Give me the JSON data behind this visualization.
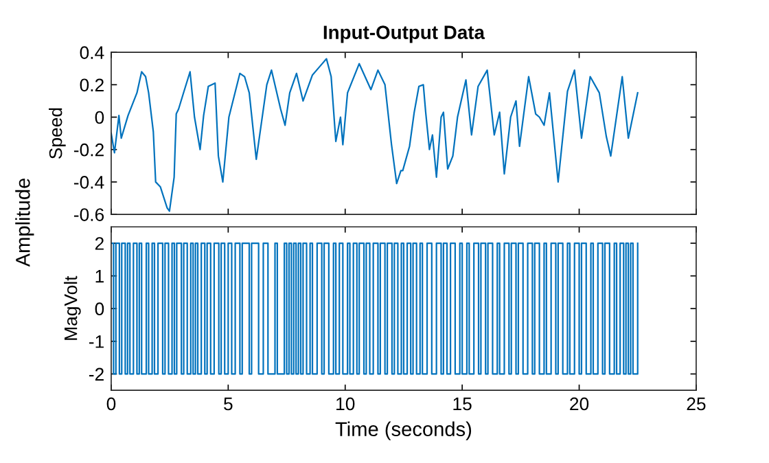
{
  "chart_data": [
    {
      "type": "line",
      "title": "Input-Output Data",
      "ylabel": "Speed",
      "annotations": [
        "Amplitude"
      ],
      "color": "#0072bd",
      "x": [
        0,
        0.14,
        0.33,
        0.43,
        0.72,
        1.1,
        1.3,
        1.47,
        1.6,
        1.8,
        1.9,
        2.1,
        2.39,
        2.49,
        2.69,
        2.78,
        2.88,
        3.07,
        3.37,
        3.56,
        3.8,
        3.95,
        4.15,
        4.44,
        4.58,
        4.77,
        5.03,
        5.5,
        5.7,
        5.9,
        6.2,
        6.65,
        6.85,
        7.24,
        7.43,
        7.63,
        7.92,
        8.2,
        8.6,
        8.9,
        9.2,
        9.4,
        9.6,
        9.8,
        9.9,
        10.1,
        10.6,
        11.1,
        11.4,
        11.7,
        11.98,
        12.2,
        12.38,
        12.46,
        12.75,
        12.95,
        13.15,
        13.34,
        13.44,
        13.6,
        13.73,
        13.9,
        14.1,
        14.2,
        14.38,
        14.6,
        14.8,
        15.16,
        15.4,
        15.68,
        16.07,
        16.37,
        16.6,
        16.8,
        17.07,
        17.3,
        17.45,
        17.84,
        18.14,
        18.3,
        18.5,
        18.73,
        19.1,
        19.5,
        19.8,
        20.1,
        20.47,
        20.86,
        21.16,
        21.35,
        21.84,
        22.1,
        22.5
      ],
      "values": [
        -0.1,
        -0.22,
        0.01,
        -0.13,
        0.01,
        0.15,
        0.28,
        0.25,
        0.15,
        -0.09,
        -0.4,
        -0.43,
        -0.56,
        -0.58,
        -0.37,
        0.02,
        0.05,
        0.14,
        0.28,
        0,
        -0.2,
        0.01,
        0.19,
        0.21,
        -0.24,
        -0.4,
        0,
        0.27,
        0.25,
        0.15,
        -0.26,
        0.2,
        0.29,
        0.05,
        -0.05,
        0.15,
        0.27,
        0.1,
        0.26,
        0.31,
        0.36,
        0.25,
        -0.15,
        0,
        -0.17,
        0.15,
        0.33,
        0.17,
        0.29,
        0.2,
        -0.17,
        -0.41,
        -0.33,
        -0.33,
        -0.18,
        0.03,
        0.19,
        0.2,
        0.03,
        -0.2,
        -0.11,
        -0.37,
        0,
        0.03,
        -0.32,
        -0.24,
        0,
        0.23,
        -0.11,
        0.19,
        0.29,
        -0.11,
        0.03,
        -0.35,
        0,
        0.1,
        -0.18,
        0.25,
        0.02,
        0,
        -0.05,
        0.15,
        -0.4,
        0.16,
        0.29,
        -0.13,
        0.25,
        0.15,
        -0.12,
        -0.24,
        0.25,
        -0.13,
        0.15
      ],
      "xlim": [
        0,
        25
      ],
      "xticks": [
        0,
        5,
        10,
        15,
        20,
        25
      ],
      "ylim": [
        -0.6,
        0.4
      ],
      "yticks": [
        -0.6,
        -0.4,
        -0.2,
        0,
        0.2,
        0.4
      ],
      "tick_labels": "y",
      "grid": false
    },
    {
      "type": "step",
      "ylabel": "MagVolt",
      "xlabel": "Time (seconds)",
      "color": "#0072bd",
      "x": [
        0,
        0.1,
        0.2,
        0.35,
        0.45,
        0.6,
        0.7,
        0.8,
        0.95,
        1.1,
        1.2,
        1.3,
        1.5,
        1.6,
        1.75,
        1.85,
        2.0,
        2.2,
        2.3,
        2.45,
        2.6,
        2.7,
        2.8,
        3.0,
        3.1,
        3.25,
        3.4,
        3.5,
        3.6,
        3.7,
        3.85,
        4.0,
        4.1,
        4.25,
        4.4,
        4.6,
        4.7,
        4.85,
        5.0,
        5.15,
        5.3,
        5.5,
        5.6,
        5.9,
        6.0,
        6.3,
        6.5,
        6.7,
        7.0,
        7.1,
        7.4,
        7.5,
        7.6,
        7.7,
        7.8,
        7.9,
        8.0,
        8.1,
        8.2,
        8.35,
        8.5,
        8.6,
        8.8,
        9.0,
        9.1,
        9.3,
        9.5,
        9.6,
        9.75,
        9.9,
        10.1,
        10.2,
        10.35,
        10.5,
        10.6,
        10.8,
        10.9,
        11.05,
        11.2,
        11.4,
        11.5,
        11.7,
        11.8,
        12.0,
        12.1,
        12.25,
        12.4,
        12.5,
        12.65,
        12.8,
        12.9,
        13.05,
        13.2,
        13.3,
        13.5,
        13.7,
        13.9,
        14.1,
        14.2,
        14.35,
        14.5,
        14.7,
        14.9,
        15.0,
        15.2,
        15.3,
        15.5,
        15.7,
        15.8,
        16.0,
        16.1,
        16.3,
        16.5,
        16.6,
        16.8,
        17.0,
        17.1,
        17.3,
        17.4,
        17.6,
        17.8,
        18.0,
        18.1,
        18.3,
        18.5,
        18.6,
        18.8,
        19.0,
        19.1,
        19.3,
        19.5,
        19.6,
        19.8,
        20.0,
        20.1,
        20.3,
        20.5,
        20.6,
        20.8,
        21.0,
        21.1,
        21.3,
        21.5,
        21.6,
        21.75,
        21.9,
        22.0,
        22.1,
        22.2,
        22.3,
        22.5
      ],
      "values": [
        2,
        -2,
        2,
        -2,
        2,
        -2,
        2,
        -2,
        2,
        -2,
        2,
        -2,
        2,
        -2,
        2,
        -2,
        2,
        -2,
        2,
        -2,
        2,
        -2,
        2,
        -2,
        2,
        -2,
        2,
        -2,
        2,
        -2,
        2,
        -2,
        2,
        -2,
        2,
        -2,
        2,
        -2,
        2,
        -2,
        2,
        -2,
        2,
        -2,
        2,
        -2,
        2,
        -2,
        2,
        -2,
        2,
        -2,
        2,
        -2,
        2,
        -2,
        2,
        -2,
        2,
        -2,
        2,
        -2,
        2,
        -2,
        2,
        -2,
        2,
        -2,
        2,
        -2,
        2,
        -2,
        2,
        -2,
        2,
        -2,
        2,
        -2,
        2,
        -2,
        2,
        -2,
        2,
        -2,
        2,
        -2,
        2,
        -2,
        2,
        -2,
        2,
        -2,
        2,
        -2,
        2,
        -2,
        2,
        -2,
        2,
        -2,
        2,
        -2,
        2,
        -2,
        2,
        -2,
        2,
        -2,
        2,
        -2,
        2,
        -2,
        2,
        -2,
        2,
        -2,
        2,
        -2,
        2,
        -2,
        2,
        -2,
        2,
        -2,
        2,
        -2,
        2,
        -2,
        2,
        -2,
        2,
        -2,
        2,
        -2,
        2,
        -2,
        2,
        -2,
        2,
        -2,
        2,
        -2,
        2,
        -2,
        2,
        -2,
        2,
        -2,
        2,
        -2,
        2
      ],
      "xlim": [
        0,
        25
      ],
      "xticks": [
        0,
        5,
        10,
        15,
        20,
        25
      ],
      "ylim": [
        -2.5,
        2.5
      ],
      "yticks": [
        -2,
        -1,
        0,
        1,
        2
      ],
      "grid": false
    }
  ]
}
